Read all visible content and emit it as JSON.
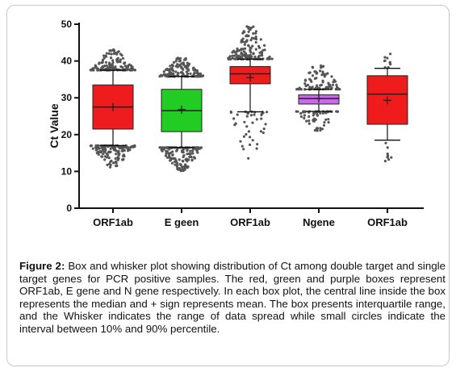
{
  "chart_data": {
    "type": "box",
    "ylabel": "Ct Value",
    "xlabel": "",
    "title": "",
    "ylim": [
      0,
      50
    ],
    "yticks": [
      0,
      10,
      20,
      30,
      40,
      50
    ],
    "categories": [
      "ORF1ab",
      "E geen",
      "ORF1ab",
      "Ngene",
      "ORF1ab"
    ],
    "colors": [
      "#ee1c1c",
      "#22cc22",
      "#ee1c1c",
      "#cc66ee",
      "#ee1c1c"
    ],
    "boxes": [
      {
        "label": "ORF1ab",
        "q1": 21.5,
        "median": 27.5,
        "q3": 33.5,
        "mean": 27.5,
        "whisker_low": 17,
        "whisker_high": 37.5,
        "outlier_low_min": 11,
        "outlier_high_max": 43.5
      },
      {
        "label": "E geen",
        "q1": 20.8,
        "median": 26.5,
        "q3": 32.3,
        "mean": 26.8,
        "whisker_low": 16.5,
        "whisker_high": 35.8,
        "outlier_low_min": 10,
        "outlier_high_max": 41
      },
      {
        "label": "ORF1ab",
        "q1": 33.8,
        "median": 36.5,
        "q3": 38.5,
        "mean": 35.5,
        "whisker_low": 26.2,
        "whisker_high": 40.5,
        "outlier_low_min": 13.5,
        "outlier_high_max": 49.5
      },
      {
        "label": "Ngene",
        "q1": 28.3,
        "median": 29.8,
        "q3": 30.8,
        "mean": 29.8,
        "whisker_low": 26.3,
        "whisker_high": 32.3,
        "outlier_low_min": 21,
        "outlier_high_max": 39.5
      },
      {
        "label": "ORF1ab",
        "q1": 22.8,
        "median": 31.0,
        "q3": 36.0,
        "mean": 29.3,
        "whisker_low": 18.5,
        "whisker_high": 38.0,
        "outlier_low_min": 12.5,
        "outlier_high_max": 42
      }
    ]
  },
  "caption": {
    "label": "Figure 2:",
    "text": " Box and whisker plot showing distribution of Ct among double target and single target genes for PCR positive samples. The red, green and purple boxes represent ORF1ab, E gene and N gene respectively. In each box plot, the central line inside the box represents the median and + sign represents mean.  The box presents interquartile range, and the Whisker indicates the range of data spread while small circles indicate the interval between 10% and 90% percentile."
  }
}
